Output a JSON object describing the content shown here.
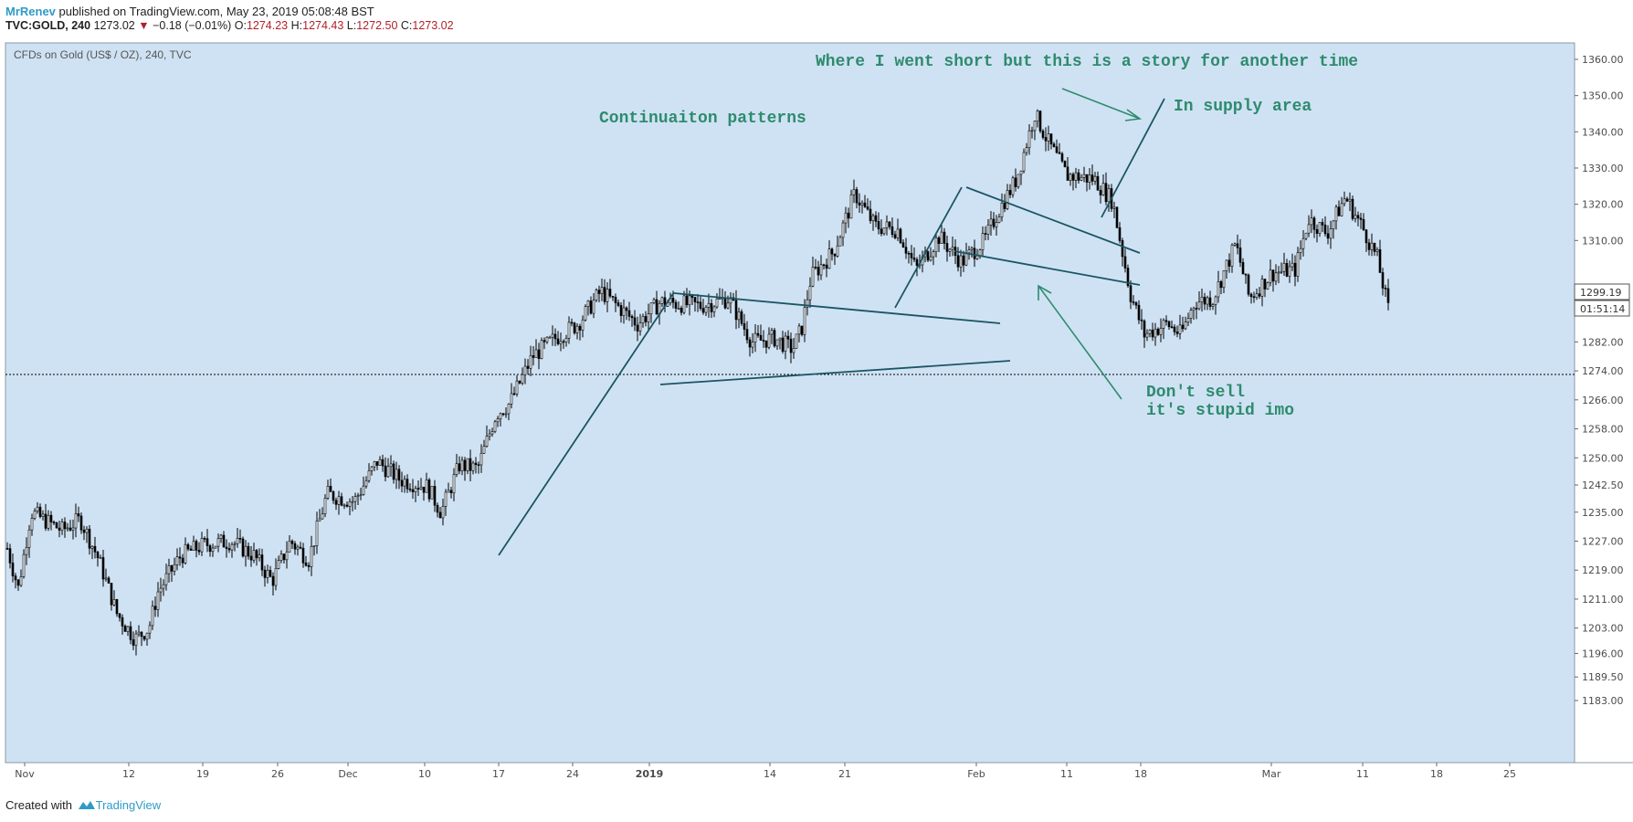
{
  "header": {
    "author": "MrRenev",
    "published": " published on TradingView.com, May 23, 2019 05:08:48 BST",
    "symbol": "TVC:GOLD, 240",
    "last": "1273.02",
    "change": "−0.18 (−0.01%)",
    "open_label": "O:",
    "open": "1274.23",
    "high_label": "H:",
    "high": "1274.43",
    "low_label": "L:",
    "low": "1272.50",
    "close_label": "C:",
    "close": "1273.02"
  },
  "footer": {
    "created": "Created with",
    "brand": "TradingView"
  },
  "colors": {
    "background": "#cfe2f3",
    "candle": "#000000",
    "trendline": "#1a5664",
    "annotation": "#2e8b6e",
    "arrow": "#2e8b6e"
  },
  "chart_data": {
    "type": "candlestick",
    "title": "CFDs on Gold (US$ / OZ), 240, TVC",
    "ylim": [
      1181,
      1366
    ],
    "y_ticks": [
      "1360.00",
      "1350.00",
      "1340.00",
      "1330.00",
      "1320.00",
      "1310.00",
      "1299.19",
      "1290.00",
      "1282.00",
      "1274.00",
      "1266.00",
      "1258.00",
      "1250.00",
      "1242.50",
      "1235.00",
      "1227.00",
      "1219.00",
      "1211.00",
      "1203.00",
      "1196.00",
      "1189.50",
      "1183.00"
    ],
    "price_label": "1299.19",
    "countdown": "01:51:14",
    "x_ticks": [
      "Nov",
      "12",
      "19",
      "26",
      "Dec",
      "10",
      "17",
      "24",
      "2019",
      "14",
      "21",
      "Feb",
      "11",
      "18",
      "Mar",
      "11",
      "18",
      "25"
    ],
    "current_price_line": 1273.02,
    "price_path": [
      [
        0,
        1225
      ],
      [
        12,
        1214
      ],
      [
        26,
        1235
      ],
      [
        60,
        1230
      ],
      [
        80,
        1233
      ],
      [
        100,
        1222
      ],
      [
        120,
        1207
      ],
      [
        140,
        1200
      ],
      [
        155,
        1203
      ],
      [
        165,
        1213
      ],
      [
        190,
        1223
      ],
      [
        215,
        1226
      ],
      [
        245,
        1227
      ],
      [
        270,
        1223
      ],
      [
        290,
        1216
      ],
      [
        310,
        1227
      ],
      [
        330,
        1222
      ],
      [
        350,
        1240
      ],
      [
        380,
        1238
      ],
      [
        405,
        1249
      ],
      [
        430,
        1244
      ],
      [
        460,
        1242
      ],
      [
        475,
        1235
      ],
      [
        495,
        1248
      ],
      [
        515,
        1247
      ],
      [
        535,
        1262
      ],
      [
        550,
        1265
      ],
      [
        575,
        1278
      ],
      [
        600,
        1283
      ],
      [
        625,
        1287
      ],
      [
        650,
        1296
      ],
      [
        690,
        1287
      ],
      [
        715,
        1293
      ],
      [
        760,
        1292
      ],
      [
        790,
        1294
      ],
      [
        815,
        1282
      ],
      [
        840,
        1283
      ],
      [
        860,
        1280
      ],
      [
        870,
        1286
      ],
      [
        880,
        1300
      ],
      [
        905,
        1307
      ],
      [
        928,
        1323
      ],
      [
        950,
        1314
      ],
      [
        975,
        1313
      ],
      [
        995,
        1302
      ],
      [
        1020,
        1311
      ],
      [
        1045,
        1304
      ],
      [
        1070,
        1310
      ],
      [
        1085,
        1318
      ],
      [
        1105,
        1327
      ],
      [
        1125,
        1345
      ],
      [
        1140,
        1337
      ],
      [
        1160,
        1328
      ],
      [
        1190,
        1327
      ],
      [
        1210,
        1321
      ],
      [
        1230,
        1295
      ],
      [
        1245,
        1284
      ],
      [
        1270,
        1287
      ],
      [
        1285,
        1284
      ],
      [
        1300,
        1293
      ],
      [
        1320,
        1294
      ],
      [
        1345,
        1309
      ],
      [
        1360,
        1294
      ],
      [
        1385,
        1301
      ],
      [
        1410,
        1302
      ],
      [
        1425,
        1316
      ],
      [
        1445,
        1312
      ],
      [
        1465,
        1322
      ],
      [
        1485,
        1313
      ],
      [
        1500,
        1305
      ],
      [
        1512,
        1291
      ]
    ]
  },
  "annotations": [
    {
      "text": "Where I went short but this is a story for another time"
    },
    {
      "text": "Continuaiton patterns"
    },
    {
      "text": "In supply area"
    },
    {
      "text": "Don't sell"
    },
    {
      "text": "it's stupid imo"
    }
  ]
}
